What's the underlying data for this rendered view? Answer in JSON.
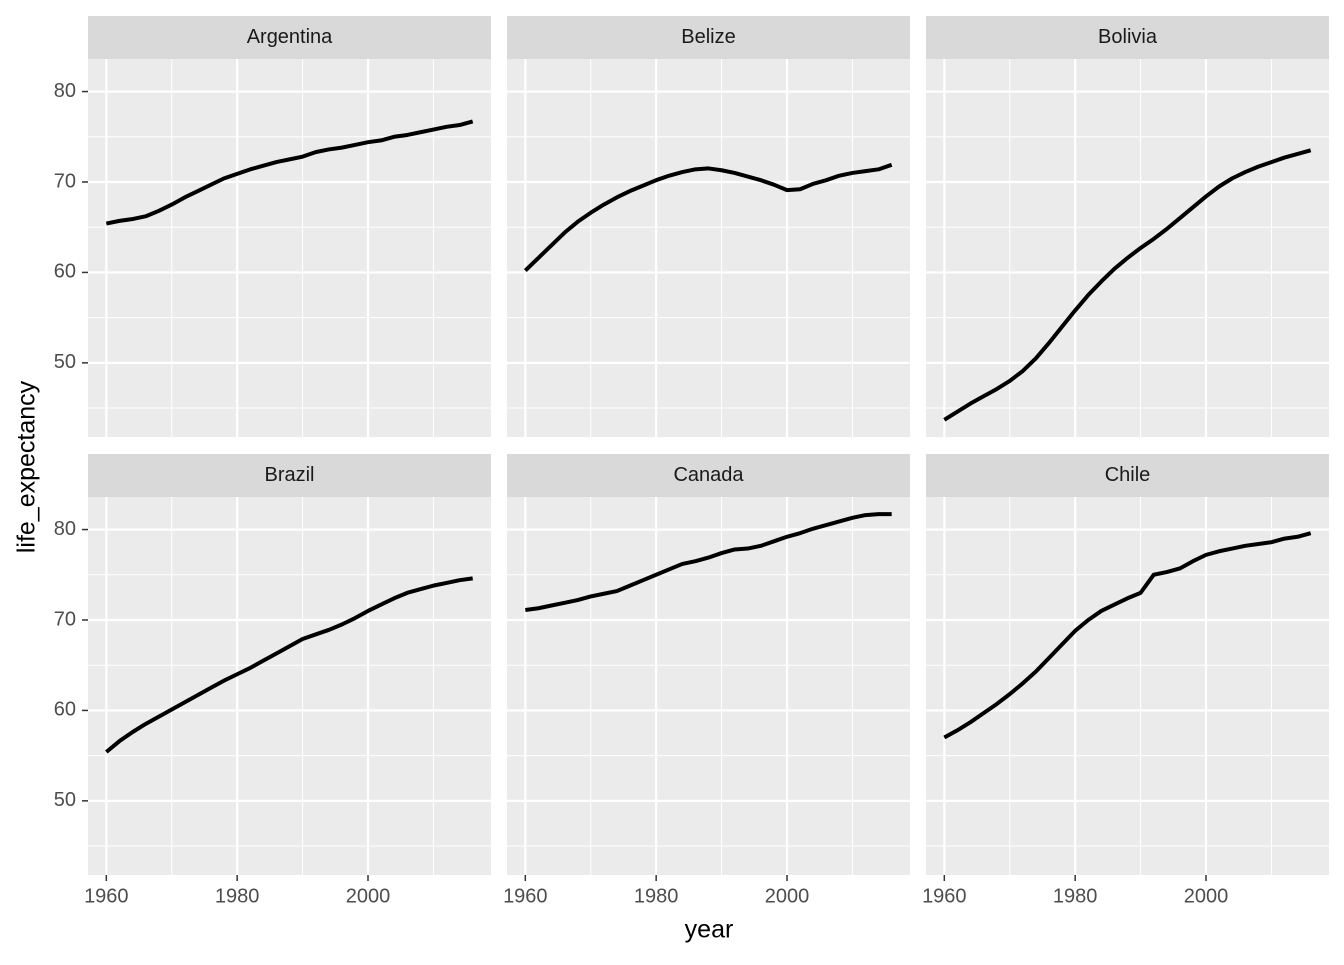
{
  "chart_data": {
    "type": "line",
    "xlabel": "year",
    "ylabel": "life_expectancy",
    "x": [
      1960,
      1962,
      1964,
      1966,
      1968,
      1970,
      1972,
      1974,
      1976,
      1978,
      1980,
      1982,
      1984,
      1986,
      1988,
      1990,
      1992,
      1994,
      1996,
      1998,
      2000,
      2002,
      2004,
      2006,
      2008,
      2010,
      2012,
      2014,
      2016
    ],
    "series": [
      {
        "name": "Argentina",
        "color": "#000000",
        "values": [
          65.4,
          65.7,
          65.9,
          66.2,
          66.8,
          67.5,
          68.3,
          69.0,
          69.7,
          70.4,
          70.9,
          71.4,
          71.8,
          72.2,
          72.5,
          72.8,
          73.3,
          73.6,
          73.8,
          74.1,
          74.4,
          74.6,
          75.0,
          75.2,
          75.5,
          75.8,
          76.1,
          76.3,
          76.7
        ]
      },
      {
        "name": "Belize",
        "color": "#000000",
        "values": [
          60.2,
          61.6,
          63.0,
          64.4,
          65.6,
          66.6,
          67.5,
          68.3,
          69.0,
          69.6,
          70.2,
          70.7,
          71.1,
          71.4,
          71.5,
          71.3,
          71.0,
          70.6,
          70.2,
          69.7,
          69.1,
          69.2,
          69.8,
          70.2,
          70.7,
          71.0,
          71.2,
          71.4,
          71.9
        ]
      },
      {
        "name": "Bolivia",
        "color": "#000000",
        "values": [
          43.7,
          44.6,
          45.5,
          46.3,
          47.1,
          48.0,
          49.1,
          50.5,
          52.2,
          54.0,
          55.8,
          57.5,
          59.0,
          60.4,
          61.6,
          62.7,
          63.7,
          64.8,
          66.0,
          67.2,
          68.4,
          69.5,
          70.4,
          71.1,
          71.7,
          72.2,
          72.7,
          73.1,
          73.5
        ]
      },
      {
        "name": "Brazil",
        "color": "#000000",
        "values": [
          55.4,
          56.6,
          57.6,
          58.5,
          59.3,
          60.1,
          60.9,
          61.7,
          62.5,
          63.3,
          64.0,
          64.7,
          65.5,
          66.3,
          67.1,
          67.9,
          68.4,
          68.9,
          69.5,
          70.2,
          71.0,
          71.7,
          72.4,
          73.0,
          73.4,
          73.8,
          74.1,
          74.4,
          74.6
        ]
      },
      {
        "name": "Canada",
        "color": "#000000",
        "values": [
          71.1,
          71.3,
          71.6,
          71.9,
          72.2,
          72.6,
          72.9,
          73.2,
          73.8,
          74.4,
          75.0,
          75.6,
          76.2,
          76.5,
          76.9,
          77.4,
          77.8,
          77.9,
          78.2,
          78.7,
          79.2,
          79.6,
          80.1,
          80.5,
          80.9,
          81.3,
          81.6,
          81.7,
          81.7
        ]
      },
      {
        "name": "Chile",
        "color": "#000000",
        "values": [
          57.0,
          57.8,
          58.7,
          59.7,
          60.7,
          61.8,
          63.0,
          64.3,
          65.8,
          67.3,
          68.8,
          70.0,
          71.0,
          71.7,
          72.4,
          73.0,
          75.0,
          75.3,
          75.7,
          76.5,
          77.2,
          77.6,
          77.9,
          78.2,
          78.4,
          78.6,
          79.0,
          79.2,
          79.6
        ]
      }
    ],
    "xlim": [
      1957.2,
      2018.8
    ],
    "ylim": [
      41.8,
      83.6
    ],
    "xticks": [
      1960,
      1980,
      2000
    ],
    "yticks": [
      50,
      60,
      70,
      80
    ],
    "xticks_minor": [
      1970,
      1990,
      2010
    ],
    "yticks_minor": [
      45,
      55,
      65,
      75
    ],
    "grid": true
  }
}
